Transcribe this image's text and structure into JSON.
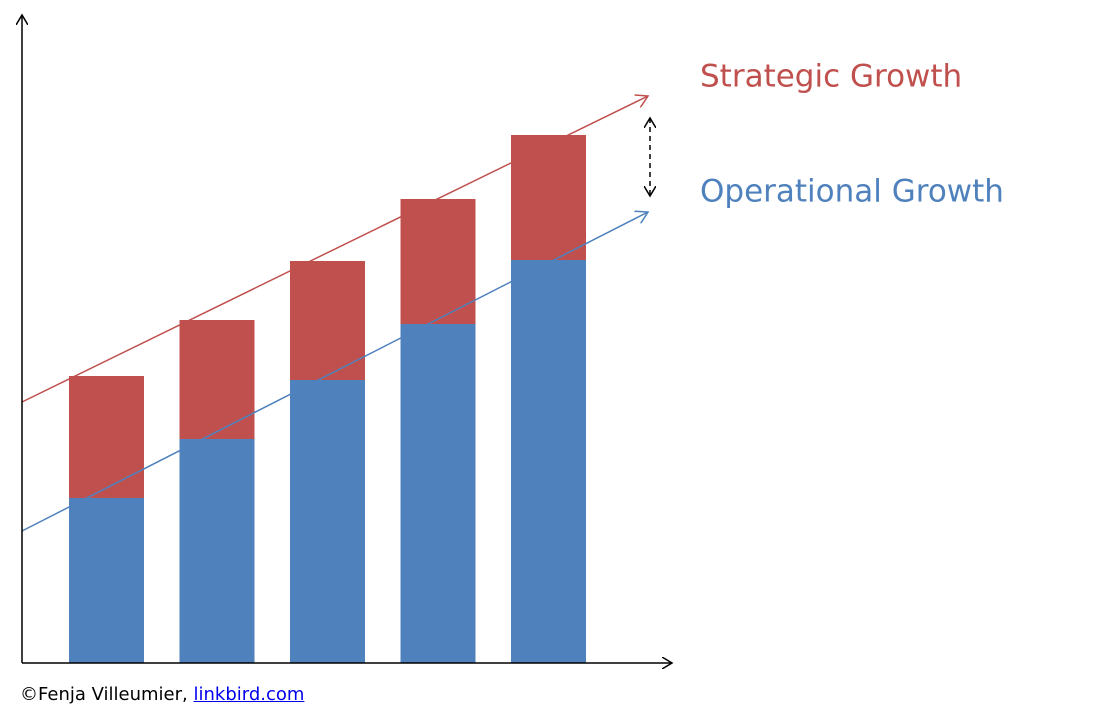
{
  "chart_data": {
    "type": "stacked-bar",
    "categories": [
      null,
      null,
      null,
      null,
      null
    ],
    "series": [
      {
        "name": "Operational Growth",
        "color": "#4f81bd",
        "values": [
          165,
          224,
          283,
          339,
          403
        ]
      },
      {
        "name": "Strategic Growth",
        "color": "#c0504d",
        "values": [
          122,
          119,
          119,
          125,
          125
        ]
      }
    ],
    "ylim": [
      0,
      648
    ]
  },
  "footer": {
    "credit": "©Fenja Villeumier,",
    "link": "linkbird.com"
  }
}
